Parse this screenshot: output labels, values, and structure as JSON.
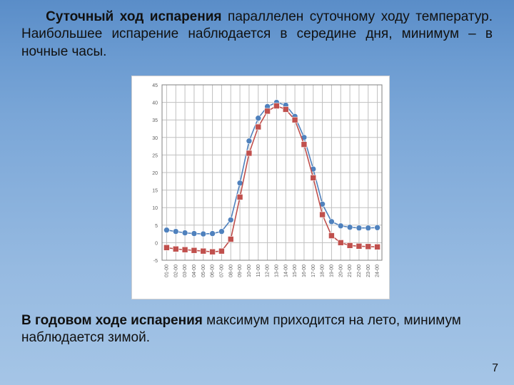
{
  "text": {
    "top_b1": "Суточный ход испарения",
    "top_r1": " параллелен суточному ходу температур. Наибольшее испарение наблюдается в середине дня, минимум – в ночные часы.",
    "bot_b1": "В годовом ходе испарения",
    "bot_r1": " максимум приходится на лето, минимум наблюдается зимой.",
    "page_num": "7"
  },
  "chart": {
    "type": "line",
    "background_color": "#ffffff",
    "plot_border_color": "#808080",
    "grid_color": "#c0c0c0",
    "axis_font_size": 7,
    "axis_font_color": "#606060",
    "x_labels": [
      "01-00",
      "02-00",
      "03-00",
      "04-00",
      "05-00",
      "06-00",
      "07-00",
      "08-00",
      "09-00",
      "10-00",
      "11-00",
      "12-00",
      "13-00",
      "14-00",
      "15-00",
      "16-00",
      "17-00",
      "18-00",
      "19-00",
      "20-00",
      "21-00",
      "22-00",
      "23-00",
      "24-00"
    ],
    "y_min": -5,
    "y_max": 45,
    "y_tick_step": 5,
    "series": [
      {
        "name": "series-blue",
        "color": "#4f81bd",
        "marker": "circle",
        "marker_size": 4,
        "line_width": 1.6,
        "values": [
          3.6,
          3.2,
          2.8,
          2.6,
          2.5,
          2.6,
          3.2,
          6.5,
          17.0,
          29.0,
          35.5,
          38.8,
          40.0,
          39.2,
          36.0,
          30.0,
          21.0,
          11.0,
          6.0,
          4.8,
          4.4,
          4.2,
          4.2,
          4.3
        ]
      },
      {
        "name": "series-red",
        "color": "#c0504d",
        "marker": "square",
        "marker_size": 4,
        "line_width": 1.6,
        "values": [
          -1.4,
          -1.8,
          -2.0,
          -2.2,
          -2.4,
          -2.6,
          -2.4,
          1.0,
          13.0,
          25.5,
          33.0,
          37.5,
          39.0,
          38.0,
          35.0,
          28.0,
          18.5,
          8.0,
          2.0,
          0.0,
          -0.8,
          -1.0,
          -1.1,
          -1.2
        ]
      }
    ]
  }
}
